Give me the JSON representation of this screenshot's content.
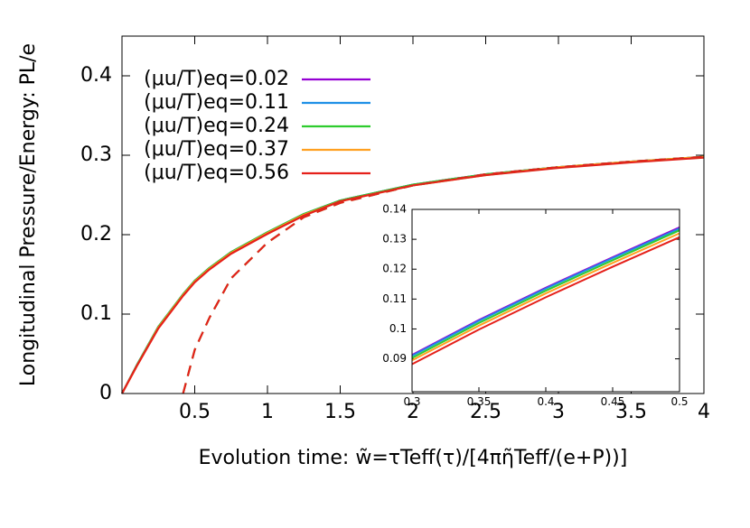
{
  "chart_data": [
    {
      "type": "line",
      "xlabel": "Evolution time: w̃=τTeff(τ)/[4πη̃Teff/(e+P))]",
      "ylabel": "Longitudinal Pressure/Energy: PL/e",
      "x": [
        0,
        0.1,
        0.25,
        0.42,
        0.5,
        0.6,
        0.75,
        1,
        1.25,
        1.5,
        2,
        2.5,
        3,
        3.5,
        4
      ],
      "xlim": [
        0,
        4
      ],
      "ylim": [
        0,
        0.45
      ],
      "xticks": [
        0.5,
        1,
        1.5,
        2,
        2.5,
        3,
        3.5,
        4
      ],
      "yticks": [
        0,
        0.1,
        0.2,
        0.3,
        0.4
      ],
      "legend": "upper left",
      "series": [
        {
          "name": "(μu/T)eq=0.02",
          "color": "#9400d3",
          "values": [
            0,
            0.035,
            0.084,
            0.125,
            0.142,
            0.158,
            0.178,
            0.203,
            0.226,
            0.243,
            0.263,
            0.276,
            0.285,
            0.292,
            0.298
          ]
        },
        {
          "name": "(μu/T)eq=0.11",
          "color": "#1e90e6",
          "values": [
            0,
            0.035,
            0.084,
            0.125,
            0.142,
            0.158,
            0.178,
            0.203,
            0.226,
            0.243,
            0.263,
            0.276,
            0.285,
            0.292,
            0.298
          ]
        },
        {
          "name": "(μu/T)eq=0.24",
          "color": "#2ecc2e",
          "values": [
            0,
            0.035,
            0.084,
            0.125,
            0.142,
            0.158,
            0.178,
            0.203,
            0.226,
            0.243,
            0.263,
            0.276,
            0.285,
            0.292,
            0.298
          ]
        },
        {
          "name": "(μu/T)eq=0.37",
          "color": "#ffa020",
          "values": [
            0,
            0.034,
            0.083,
            0.124,
            0.141,
            0.157,
            0.177,
            0.202,
            0.225,
            0.242,
            0.262,
            0.275,
            0.285,
            0.292,
            0.298
          ]
        },
        {
          "name": "(μu/T)eq=0.56",
          "color": "#e5201a",
          "values": [
            0,
            0.034,
            0.082,
            0.123,
            0.14,
            0.156,
            0.176,
            0.201,
            0.224,
            0.242,
            0.262,
            0.275,
            0.284,
            0.291,
            0.297
          ]
        },
        {
          "color": "#2ecc2e",
          "dash": true,
          "values": [
            null,
            null,
            null,
            0,
            0.055,
            0.095,
            0.145,
            0.19,
            0.222,
            0.24,
            0.262,
            0.276,
            0.285,
            0.292,
            0.298
          ]
        },
        {
          "color": "#e5201a",
          "dash": true,
          "values": [
            null,
            null,
            null,
            0,
            0.055,
            0.095,
            0.145,
            0.19,
            0.222,
            0.24,
            0.262,
            0.276,
            0.285,
            0.292,
            0.298
          ]
        }
      ]
    },
    {
      "type": "line",
      "x": [
        0.3,
        0.35,
        0.4,
        0.45,
        0.5
      ],
      "xlim": [
        0.3,
        0.5
      ],
      "ylim": [
        0.079,
        0.14
      ],
      "xticks": [
        0.3,
        0.35,
        0.4,
        0.45,
        0.5
      ],
      "yticks": [
        0.09,
        0.1,
        0.11,
        0.12,
        0.13,
        0.14
      ],
      "series": [
        {
          "color": "#9400d3",
          "values": [
            0.0913,
            0.103,
            0.1138,
            0.124,
            0.134
          ]
        },
        {
          "color": "#1e90e6",
          "values": [
            0.091,
            0.1027,
            0.1135,
            0.1237,
            0.1336
          ]
        },
        {
          "color": "#2ecc2e",
          "values": [
            0.0903,
            0.102,
            0.1128,
            0.123,
            0.133
          ]
        },
        {
          "color": "#ffa020",
          "values": [
            0.0895,
            0.1011,
            0.1119,
            0.1221,
            0.132
          ]
        },
        {
          "color": "#e5201a",
          "values": [
            0.0882,
            0.0998,
            0.1106,
            0.1208,
            0.1307
          ]
        }
      ]
    }
  ]
}
